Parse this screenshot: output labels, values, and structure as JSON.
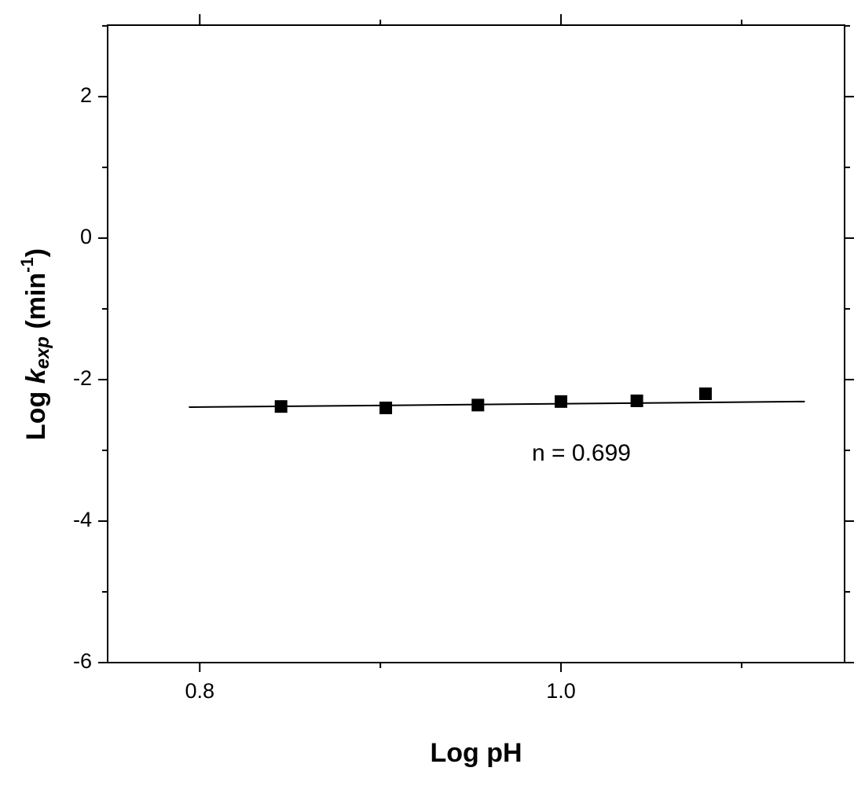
{
  "chart_data": {
    "type": "scatter",
    "xlabel": "Log pH",
    "ylabel": [
      "Log ",
      "k",
      "exp",
      " (min",
      "-1",
      ")"
    ],
    "annotation": "n = 0.699",
    "series": [
      {
        "color": "#000000",
        "x": [
          0.845,
          0.903,
          0.954,
          1.0,
          1.042,
          1.08
        ],
        "values": [
          -2.38,
          -2.4,
          -2.36,
          -2.31,
          -2.3,
          -2.2
        ]
      }
    ],
    "fit": {
      "color": "#000000",
      "x": [
        0.794,
        1.135
      ],
      "values": [
        -2.39,
        -2.31
      ]
    },
    "xlim": [
      0.749,
      1.157
    ],
    "ylim": [
      -6,
      3.01
    ],
    "xticks": [
      0.8,
      {
        "value": 1,
        "label": "1.0"
      }
    ],
    "xminor": [
      0.9,
      1.1
    ],
    "yticks": [
      -6,
      -4,
      -2,
      0,
      2
    ],
    "yminor": [
      -5,
      -3,
      -1,
      1,
      3
    ]
  }
}
